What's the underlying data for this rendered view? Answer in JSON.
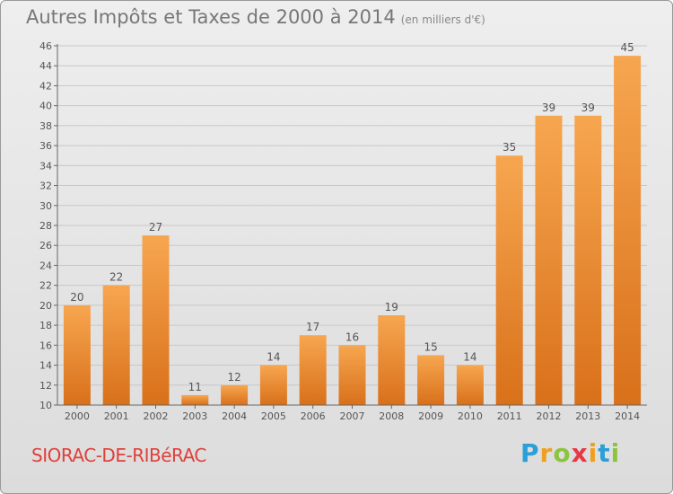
{
  "header": {
    "title": "Autres Impôts et Taxes de 2000 à 2014",
    "subtitle": "(en milliers d'€)"
  },
  "footer": {
    "commune": "SIORAC-DE-RIBéRAC",
    "logo": [
      "P",
      "r",
      "o",
      "x",
      "i",
      "t",
      "i"
    ]
  },
  "colors": {
    "bar_light": "#f7a650",
    "bar_dark": "#d9701a",
    "grid": "#c8c8c8",
    "text": "#555555"
  },
  "chart_data": {
    "type": "bar",
    "categories": [
      "2000",
      "2001",
      "2002",
      "2003",
      "2004",
      "2005",
      "2006",
      "2007",
      "2008",
      "2009",
      "2010",
      "2011",
      "2012",
      "2013",
      "2014"
    ],
    "values": [
      20,
      22,
      27,
      11,
      12,
      14,
      17,
      16,
      19,
      15,
      14,
      35,
      39,
      39,
      45
    ],
    "ylim": [
      10,
      46
    ],
    "yticks": [
      10,
      12,
      14,
      16,
      18,
      20,
      22,
      24,
      26,
      28,
      30,
      32,
      34,
      36,
      38,
      40,
      42,
      44,
      46
    ],
    "grid": true,
    "data_labels": true
  }
}
